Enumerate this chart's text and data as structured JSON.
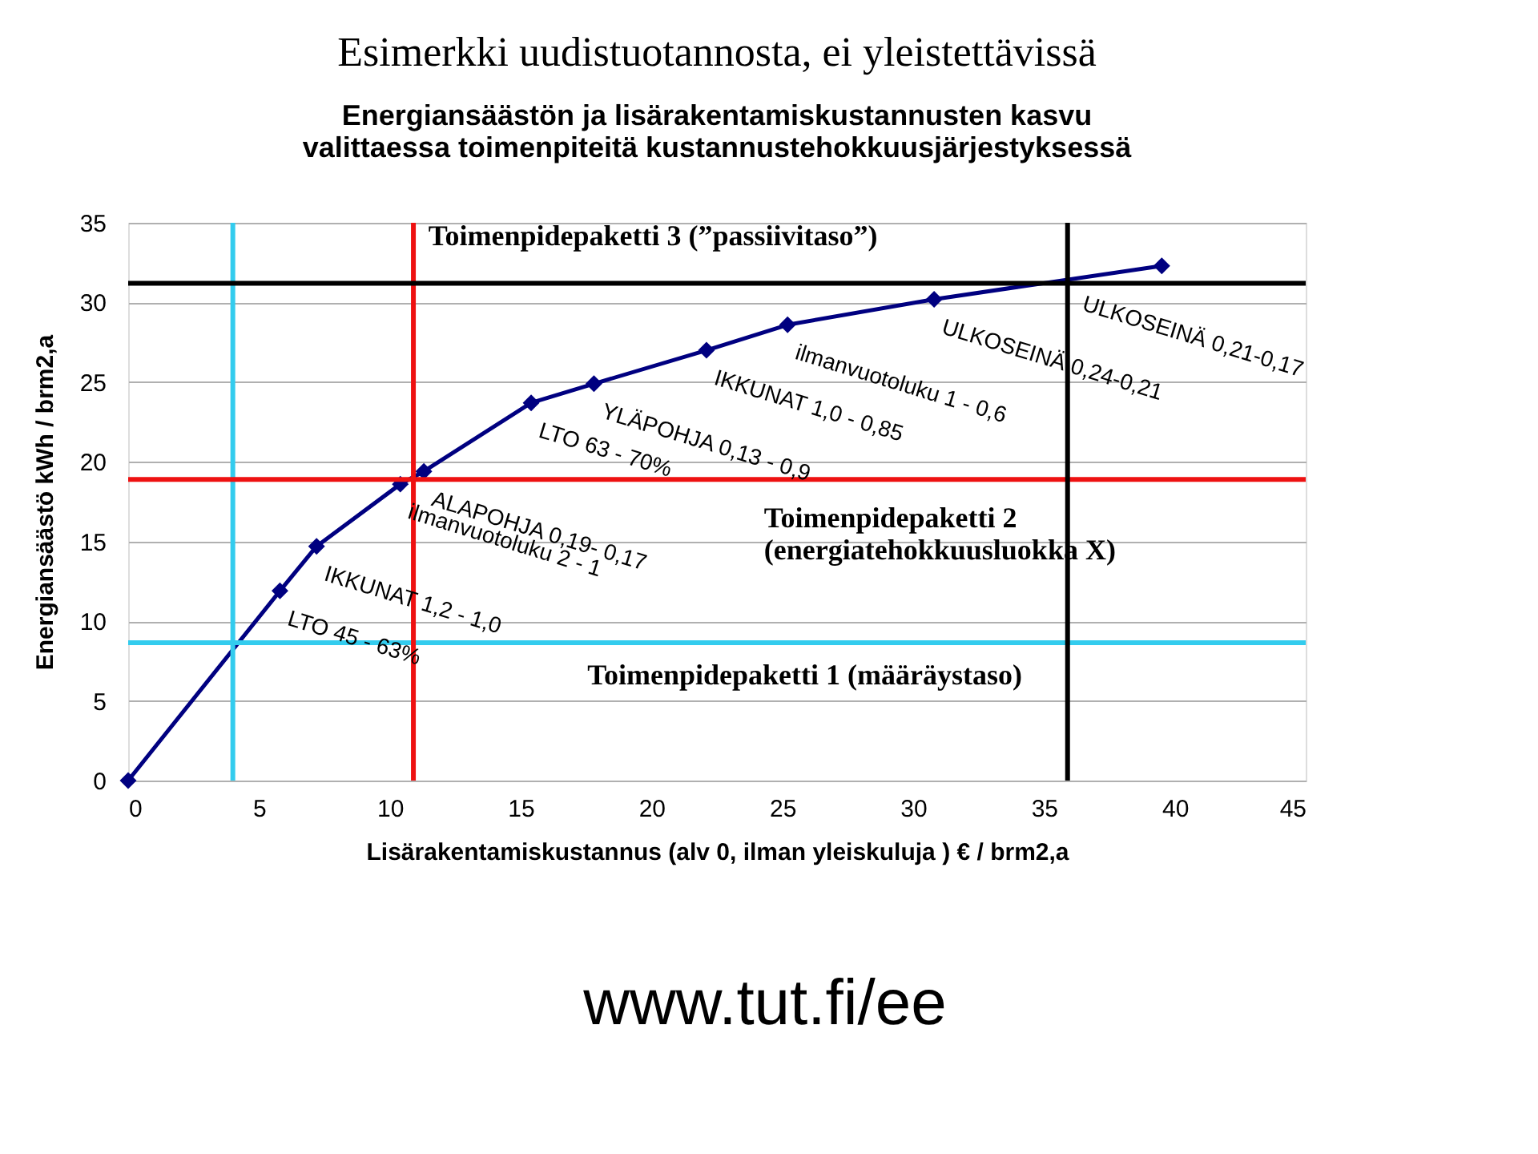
{
  "chart_data": {
    "type": "line",
    "title": "Esimerkki uudistuotannosta, ei yleistettävissä",
    "subtitle": "Energiansäästön ja lisärakentamiskustannusten kasvu\nvalittaessa toimenpiteitä kustannustehokkuusjärjestyksessä",
    "xlabel": "Lisärakentamiskustannus (alv 0, ilman yleiskuluja )  € / brm2,a",
    "ylabel": "Energiansäästö   kWh / brm2,a",
    "x": [
      0,
      5.8,
      7.2,
      10.4,
      11.3,
      15.4,
      17.8,
      22.1,
      25.2,
      30.8,
      39.5
    ],
    "series": [
      {
        "color": "#000080",
        "values": [
          0,
          11.9,
          14.7,
          18.6,
          19.4,
          23.7,
          24.9,
          27.0,
          28.6,
          30.2,
          32.3
        ]
      }
    ],
    "marker": "diamond",
    "line_style": "solid",
    "grid": "y",
    "xlim": [
      0,
      45
    ],
    "ylim": [
      0,
      35
    ],
    "xticks": [
      0,
      5,
      10,
      15,
      20,
      25,
      30,
      35,
      40,
      45
    ],
    "yticks": [
      0,
      5,
      10,
      15,
      20,
      25,
      30,
      35
    ],
    "ref_lines": [
      {
        "axis": "y",
        "value": 8.65,
        "color": "#33ccee",
        "label": "Toimenpidepaketti  1 (määräystaso)"
      },
      {
        "axis": "x",
        "value": 4.0,
        "color": "#33ccee"
      },
      {
        "axis": "y",
        "value": 18.9,
        "color": "#ee1111",
        "label": "Toimenpidepaketti 2\n(energiatehokkuusluokka X)"
      },
      {
        "axis": "x",
        "value": 10.9,
        "color": "#ee1111"
      },
      {
        "axis": "y",
        "value": 31.2,
        "color": "#000000",
        "label": "Toimenpidepaketti 3 (”passiivitaso”)"
      },
      {
        "axis": "x",
        "value": 35.9,
        "color": "#000000"
      }
    ],
    "annotations": [
      "LTO  45 - 63%",
      "IKKUNAT  1,2 - 1,0",
      "ilmanvuotoluku  2 - 1",
      "ALAPOHJA   0,19- 0,17",
      "LTO  63 - 70%",
      "YLÄPOHJA   0,13 - 0,9",
      "IKKUNAT   1,0 - 0,85",
      "ilmanvuotoluku  1 - 0,6",
      "ULKOSEINÄ  0,24-0,21",
      "ULKOSEINÄ  0,21-0,17",
      "www.tut.fi/ee"
    ]
  }
}
